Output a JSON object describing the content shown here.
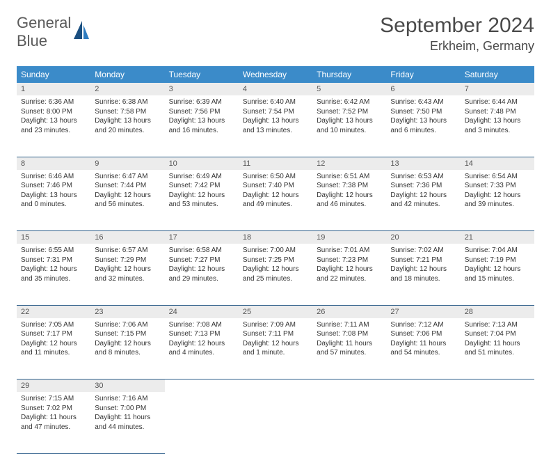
{
  "logo": {
    "general": "General",
    "blue": "Blue"
  },
  "title": "September 2024",
  "location": "Erkheim, Germany",
  "colors": {
    "header_bg": "#3b8bc9",
    "header_text": "#ffffff",
    "daynum_bg": "#ececec",
    "row_border": "#2e5f8a",
    "logo_gray": "#5a5a5a",
    "logo_blue": "#2e7cc0"
  },
  "weekdays": [
    "Sunday",
    "Monday",
    "Tuesday",
    "Wednesday",
    "Thursday",
    "Friday",
    "Saturday"
  ],
  "weeks": [
    [
      {
        "n": "1",
        "sr": "Sunrise: 6:36 AM",
        "ss": "Sunset: 8:00 PM",
        "dl": "Daylight: 13 hours and 23 minutes."
      },
      {
        "n": "2",
        "sr": "Sunrise: 6:38 AM",
        "ss": "Sunset: 7:58 PM",
        "dl": "Daylight: 13 hours and 20 minutes."
      },
      {
        "n": "3",
        "sr": "Sunrise: 6:39 AM",
        "ss": "Sunset: 7:56 PM",
        "dl": "Daylight: 13 hours and 16 minutes."
      },
      {
        "n": "4",
        "sr": "Sunrise: 6:40 AM",
        "ss": "Sunset: 7:54 PM",
        "dl": "Daylight: 13 hours and 13 minutes."
      },
      {
        "n": "5",
        "sr": "Sunrise: 6:42 AM",
        "ss": "Sunset: 7:52 PM",
        "dl": "Daylight: 13 hours and 10 minutes."
      },
      {
        "n": "6",
        "sr": "Sunrise: 6:43 AM",
        "ss": "Sunset: 7:50 PM",
        "dl": "Daylight: 13 hours and 6 minutes."
      },
      {
        "n": "7",
        "sr": "Sunrise: 6:44 AM",
        "ss": "Sunset: 7:48 PM",
        "dl": "Daylight: 13 hours and 3 minutes."
      }
    ],
    [
      {
        "n": "8",
        "sr": "Sunrise: 6:46 AM",
        "ss": "Sunset: 7:46 PM",
        "dl": "Daylight: 13 hours and 0 minutes."
      },
      {
        "n": "9",
        "sr": "Sunrise: 6:47 AM",
        "ss": "Sunset: 7:44 PM",
        "dl": "Daylight: 12 hours and 56 minutes."
      },
      {
        "n": "10",
        "sr": "Sunrise: 6:49 AM",
        "ss": "Sunset: 7:42 PM",
        "dl": "Daylight: 12 hours and 53 minutes."
      },
      {
        "n": "11",
        "sr": "Sunrise: 6:50 AM",
        "ss": "Sunset: 7:40 PM",
        "dl": "Daylight: 12 hours and 49 minutes."
      },
      {
        "n": "12",
        "sr": "Sunrise: 6:51 AM",
        "ss": "Sunset: 7:38 PM",
        "dl": "Daylight: 12 hours and 46 minutes."
      },
      {
        "n": "13",
        "sr": "Sunrise: 6:53 AM",
        "ss": "Sunset: 7:36 PM",
        "dl": "Daylight: 12 hours and 42 minutes."
      },
      {
        "n": "14",
        "sr": "Sunrise: 6:54 AM",
        "ss": "Sunset: 7:33 PM",
        "dl": "Daylight: 12 hours and 39 minutes."
      }
    ],
    [
      {
        "n": "15",
        "sr": "Sunrise: 6:55 AM",
        "ss": "Sunset: 7:31 PM",
        "dl": "Daylight: 12 hours and 35 minutes."
      },
      {
        "n": "16",
        "sr": "Sunrise: 6:57 AM",
        "ss": "Sunset: 7:29 PM",
        "dl": "Daylight: 12 hours and 32 minutes."
      },
      {
        "n": "17",
        "sr": "Sunrise: 6:58 AM",
        "ss": "Sunset: 7:27 PM",
        "dl": "Daylight: 12 hours and 29 minutes."
      },
      {
        "n": "18",
        "sr": "Sunrise: 7:00 AM",
        "ss": "Sunset: 7:25 PM",
        "dl": "Daylight: 12 hours and 25 minutes."
      },
      {
        "n": "19",
        "sr": "Sunrise: 7:01 AM",
        "ss": "Sunset: 7:23 PM",
        "dl": "Daylight: 12 hours and 22 minutes."
      },
      {
        "n": "20",
        "sr": "Sunrise: 7:02 AM",
        "ss": "Sunset: 7:21 PM",
        "dl": "Daylight: 12 hours and 18 minutes."
      },
      {
        "n": "21",
        "sr": "Sunrise: 7:04 AM",
        "ss": "Sunset: 7:19 PM",
        "dl": "Daylight: 12 hours and 15 minutes."
      }
    ],
    [
      {
        "n": "22",
        "sr": "Sunrise: 7:05 AM",
        "ss": "Sunset: 7:17 PM",
        "dl": "Daylight: 12 hours and 11 minutes."
      },
      {
        "n": "23",
        "sr": "Sunrise: 7:06 AM",
        "ss": "Sunset: 7:15 PM",
        "dl": "Daylight: 12 hours and 8 minutes."
      },
      {
        "n": "24",
        "sr": "Sunrise: 7:08 AM",
        "ss": "Sunset: 7:13 PM",
        "dl": "Daylight: 12 hours and 4 minutes."
      },
      {
        "n": "25",
        "sr": "Sunrise: 7:09 AM",
        "ss": "Sunset: 7:11 PM",
        "dl": "Daylight: 12 hours and 1 minute."
      },
      {
        "n": "26",
        "sr": "Sunrise: 7:11 AM",
        "ss": "Sunset: 7:08 PM",
        "dl": "Daylight: 11 hours and 57 minutes."
      },
      {
        "n": "27",
        "sr": "Sunrise: 7:12 AM",
        "ss": "Sunset: 7:06 PM",
        "dl": "Daylight: 11 hours and 54 minutes."
      },
      {
        "n": "28",
        "sr": "Sunrise: 7:13 AM",
        "ss": "Sunset: 7:04 PM",
        "dl": "Daylight: 11 hours and 51 minutes."
      }
    ],
    [
      {
        "n": "29",
        "sr": "Sunrise: 7:15 AM",
        "ss": "Sunset: 7:02 PM",
        "dl": "Daylight: 11 hours and 47 minutes."
      },
      {
        "n": "30",
        "sr": "Sunrise: 7:16 AM",
        "ss": "Sunset: 7:00 PM",
        "dl": "Daylight: 11 hours and 44 minutes."
      },
      null,
      null,
      null,
      null,
      null
    ]
  ]
}
